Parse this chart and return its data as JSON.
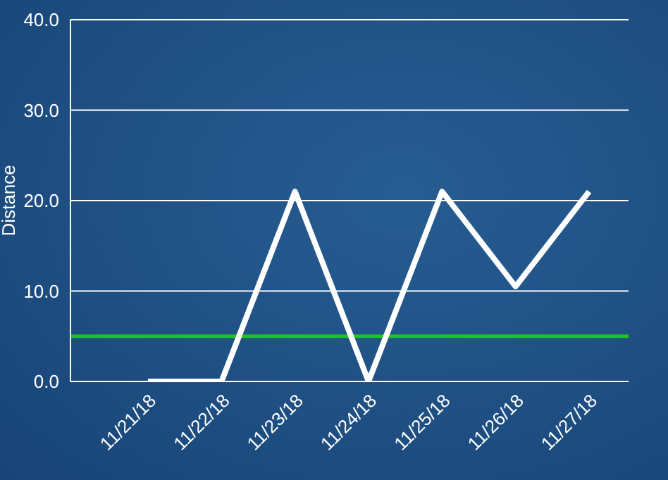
{
  "chart_data": {
    "type": "line",
    "ylabel": "Distance",
    "categories": [
      "11/21/18",
      "11/22/18",
      "11/23/18",
      "11/24/18",
      "11/25/18",
      "11/26/18",
      "11/27/18"
    ],
    "series": [
      {
        "color": "#ffffff",
        "values": [
          0,
          0,
          21,
          0,
          21,
          10.5,
          21
        ]
      }
    ],
    "ylim": [
      0,
      40
    ],
    "yticks": [
      {
        "value": 0,
        "label": "0.0"
      },
      {
        "value": 10,
        "label": "10.0"
      },
      {
        "value": 20,
        "label": "20.0"
      },
      {
        "value": 30,
        "label": "30.0"
      },
      {
        "value": 40,
        "label": "40.0"
      }
    ],
    "grid": "y",
    "legend": false,
    "marker": "none",
    "line_style": "solid",
    "ref_lines": [
      {
        "axis": "y",
        "value": 5,
        "label": null,
        "color": "#1fc21f"
      }
    ]
  }
}
